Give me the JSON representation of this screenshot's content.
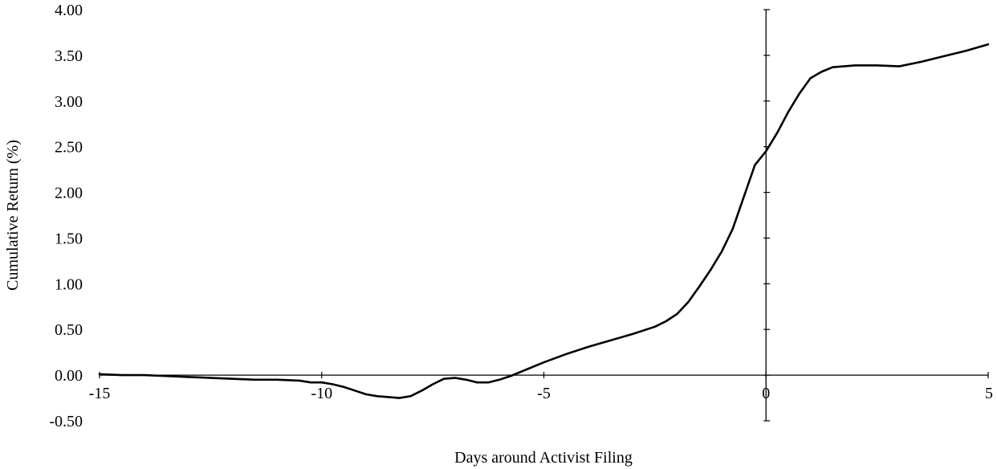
{
  "chart_data": {
    "type": "line",
    "title": "",
    "xlabel": "Days around Activist Filing",
    "ylabel": "Cumulative Return (%)",
    "xlim": [
      -15,
      5
    ],
    "ylim": [
      -0.5,
      4.0
    ],
    "grid": false,
    "legend": "none",
    "x_ticks": [
      "-15",
      "-10",
      "-5",
      "0",
      "5"
    ],
    "x_tick_values": [
      -15,
      -10,
      -5,
      0,
      5
    ],
    "y_ticks": [
      "-0.50",
      "0.00",
      "0.50",
      "1.00",
      "1.50",
      "2.00",
      "2.50",
      "3.00",
      "3.50",
      "4.00"
    ],
    "y_tick_values": [
      -0.5,
      0.0,
      0.5,
      1.0,
      1.5,
      2.0,
      2.5,
      3.0,
      3.5,
      4.0
    ],
    "line_color": "#000000",
    "series": [
      {
        "x": [
          -15,
          -14.5,
          -14,
          -13.5,
          -13,
          -12.5,
          -12,
          -11.5,
          -11,
          -10.5,
          -10.25,
          -10,
          -9.75,
          -9.5,
          -9.25,
          -9,
          -8.75,
          -8.5,
          -8.25,
          -8,
          -7.75,
          -7.5,
          -7.25,
          -7,
          -6.75,
          -6.5,
          -6.25,
          -6,
          -5.75,
          -5.5,
          -5.25,
          -5,
          -4.5,
          -4,
          -3.5,
          -3,
          -2.5,
          -2.25,
          -2,
          -1.75,
          -1.5,
          -1.25,
          -1,
          -0.75,
          -0.5,
          -0.25,
          0,
          0.25,
          0.5,
          0.75,
          1,
          1.25,
          1.5,
          2,
          2.5,
          3,
          3.5,
          4,
          4.5,
          5
        ],
        "y": [
          0.01,
          0.0,
          0.0,
          -0.01,
          -0.02,
          -0.03,
          -0.04,
          -0.05,
          -0.05,
          -0.06,
          -0.08,
          -0.08,
          -0.1,
          -0.13,
          -0.17,
          -0.21,
          -0.23,
          -0.24,
          -0.25,
          -0.23,
          -0.17,
          -0.1,
          -0.04,
          -0.03,
          -0.05,
          -0.08,
          -0.08,
          -0.05,
          -0.01,
          0.04,
          0.09,
          0.14,
          0.23,
          0.31,
          0.38,
          0.45,
          0.53,
          0.59,
          0.67,
          0.8,
          0.97,
          1.15,
          1.35,
          1.6,
          1.95,
          2.3,
          2.45,
          2.65,
          2.88,
          3.08,
          3.25,
          3.32,
          3.37,
          3.39,
          3.39,
          3.38,
          3.43,
          3.49,
          3.55,
          3.62
        ]
      }
    ]
  }
}
